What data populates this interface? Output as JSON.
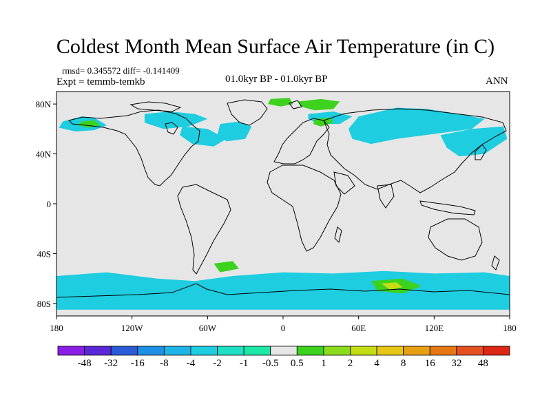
{
  "title": "Coldest Month Mean Surface Air Temperature (in C)",
  "stats": {
    "rmsd_line": "rmsd= 0.345572 diff= -0.141409",
    "expt_line": "Expt = temmb-temkb"
  },
  "subtitle_center": "01.0kyr BP - 01.0kyr BP",
  "subtitle_right": "ANN",
  "map": {
    "projection": "cylindrical-equidistant",
    "lon_range": [
      -180,
      180
    ],
    "lat_range": [
      -90,
      90
    ],
    "background_color": "#e6e6e6",
    "x_ticks": [
      {
        "lon": -180,
        "label": "180"
      },
      {
        "lon": -120,
        "label": "120W"
      },
      {
        "lon": -60,
        "label": "60W"
      },
      {
        "lon": 0,
        "label": "0"
      },
      {
        "lon": 60,
        "label": "60E"
      },
      {
        "lon": 120,
        "label": "120E"
      },
      {
        "lon": 180,
        "label": "180"
      }
    ],
    "y_ticks": [
      {
        "lat": 80,
        "label": "80N"
      },
      {
        "lat": 40,
        "label": "40N"
      },
      {
        "lat": 0,
        "label": "0"
      },
      {
        "lat": -40,
        "label": "40S"
      },
      {
        "lat": -80,
        "label": "80S"
      }
    ]
  },
  "legend": {
    "colors": [
      "#8a1ee6",
      "#5a28d8",
      "#2a5cd9",
      "#1e90e6",
      "#1eb4e6",
      "#1ecde0",
      "#1ee0c4",
      "#1ee8a8",
      "#e6e6e6",
      "#3cd21e",
      "#8cdc1e",
      "#c3dc14",
      "#e6c814",
      "#e6a014",
      "#e67814",
      "#e6501e",
      "#dc2814"
    ],
    "labels": [
      "-48",
      "-32",
      "-16",
      "-8",
      "-4",
      "-2",
      "-1",
      "-0.5",
      "0.5",
      "1",
      "2",
      "4",
      "8",
      "16",
      "32",
      "48"
    ]
  },
  "anomaly_regions": [
    {
      "color": "#1ecde0",
      "points": [
        [
          -175,
          66
        ],
        [
          -160,
          70
        ],
        [
          -150,
          69
        ],
        [
          -140,
          63
        ],
        [
          -150,
          59
        ],
        [
          -165,
          58
        ],
        [
          -178,
          61
        ]
      ]
    },
    {
      "color": "#3cd21e",
      "points": [
        [
          -160,
          66
        ],
        [
          -150,
          67
        ],
        [
          -145,
          63
        ],
        [
          -155,
          61
        ],
        [
          -163,
          63
        ]
      ]
    },
    {
      "color": "#1ecde0",
      "points": [
        [
          -110,
          72
        ],
        [
          -90,
          74
        ],
        [
          -70,
          72
        ],
        [
          -60,
          68
        ],
        [
          -75,
          62
        ],
        [
          -95,
          60
        ],
        [
          -110,
          65
        ]
      ]
    },
    {
      "color": "#1ecde0",
      "points": [
        [
          -80,
          62
        ],
        [
          -60,
          60
        ],
        [
          -45,
          52
        ],
        [
          -55,
          46
        ],
        [
          -72,
          48
        ],
        [
          -82,
          55
        ]
      ]
    },
    {
      "color": "#1ecde0",
      "points": [
        [
          -50,
          64
        ],
        [
          -35,
          66
        ],
        [
          -25,
          62
        ],
        [
          -30,
          52
        ],
        [
          -45,
          50
        ],
        [
          -52,
          56
        ]
      ]
    },
    {
      "color": "#3cd21e",
      "points": [
        [
          -10,
          84
        ],
        [
          5,
          85
        ],
        [
          8,
          80
        ],
        [
          -2,
          78
        ],
        [
          -12,
          80
        ]
      ]
    },
    {
      "color": "#3cd21e",
      "points": [
        [
          12,
          82
        ],
        [
          30,
          84
        ],
        [
          45,
          82
        ],
        [
          40,
          76
        ],
        [
          25,
          75
        ],
        [
          14,
          78
        ]
      ]
    },
    {
      "color": "#1ecde0",
      "points": [
        [
          20,
          72
        ],
        [
          40,
          74
        ],
        [
          55,
          70
        ],
        [
          45,
          64
        ],
        [
          28,
          64
        ],
        [
          20,
          68
        ]
      ]
    },
    {
      "color": "#3cd21e",
      "points": [
        [
          25,
          68
        ],
        [
          38,
          69
        ],
        [
          40,
          65
        ],
        [
          30,
          62
        ],
        [
          24,
          64
        ]
      ]
    },
    {
      "color": "#1ecde0",
      "points": [
        [
          60,
          70
        ],
        [
          90,
          77
        ],
        [
          115,
          76
        ],
        [
          140,
          72
        ],
        [
          160,
          68
        ],
        [
          150,
          60
        ],
        [
          120,
          56
        ],
        [
          90,
          52
        ],
        [
          70,
          48
        ],
        [
          55,
          52
        ],
        [
          52,
          60
        ]
      ]
    },
    {
      "color": "#1ecde0",
      "points": [
        [
          125,
          55
        ],
        [
          150,
          60
        ],
        [
          175,
          62
        ],
        [
          178,
          52
        ],
        [
          160,
          40
        ],
        [
          140,
          38
        ],
        [
          130,
          45
        ]
      ]
    },
    {
      "color": "#1ecde0",
      "points": [
        [
          -180,
          -58
        ],
        [
          -140,
          -55
        ],
        [
          -100,
          -60
        ],
        [
          -70,
          -62
        ],
        [
          -40,
          -58
        ],
        [
          0,
          -55
        ],
        [
          40,
          -56
        ],
        [
          80,
          -54
        ],
        [
          120,
          -56
        ],
        [
          160,
          -55
        ],
        [
          180,
          -58
        ],
        [
          180,
          -85
        ],
        [
          -180,
          -85
        ]
      ]
    },
    {
      "color": "#3cd21e",
      "points": [
        [
          70,
          -62
        ],
        [
          95,
          -60
        ],
        [
          110,
          -66
        ],
        [
          95,
          -72
        ],
        [
          75,
          -70
        ]
      ]
    },
    {
      "color": "#c3dc14",
      "points": [
        [
          78,
          -64
        ],
        [
          90,
          -63
        ],
        [
          95,
          -67
        ],
        [
          85,
          -69
        ]
      ]
    },
    {
      "color": "#3cd21e",
      "points": [
        [
          -55,
          -48
        ],
        [
          -40,
          -46
        ],
        [
          -35,
          -52
        ],
        [
          -50,
          -55
        ]
      ]
    }
  ]
}
